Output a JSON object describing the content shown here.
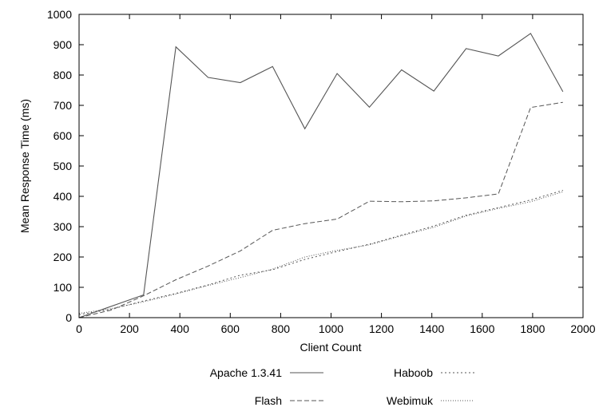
{
  "chart_data": {
    "type": "line",
    "xlabel": "Client Count",
    "ylabel": "Mean Response Time (ms)",
    "xlim": [
      0,
      2000
    ],
    "ylim": [
      0,
      1000
    ],
    "xticks": [
      0,
      200,
      400,
      600,
      800,
      1000,
      1200,
      1400,
      1600,
      1800,
      2000
    ],
    "yticks": [
      0,
      100,
      200,
      300,
      400,
      500,
      600,
      700,
      800,
      900,
      1000
    ],
    "grid": false,
    "legend_position": "bottom, two columns",
    "series": [
      {
        "name": "Apache 1.3.41",
        "style": "solid",
        "color": "#555555",
        "points": [
          [
            0,
            0
          ],
          [
            256,
            75
          ],
          [
            384,
            893
          ],
          [
            512,
            792
          ],
          [
            640,
            775
          ],
          [
            768,
            828
          ],
          [
            896,
            623
          ],
          [
            1024,
            805
          ],
          [
            1152,
            694
          ],
          [
            1280,
            817
          ],
          [
            1408,
            747
          ],
          [
            1536,
            887
          ],
          [
            1664,
            863
          ],
          [
            1792,
            937
          ],
          [
            1920,
            745
          ]
        ]
      },
      {
        "name": "Flash",
        "style": "dashed",
        "color": "#555555",
        "points": [
          [
            0,
            0
          ],
          [
            128,
            25
          ],
          [
            256,
            72
          ],
          [
            384,
            125
          ],
          [
            512,
            170
          ],
          [
            640,
            220
          ],
          [
            768,
            288
          ],
          [
            896,
            310
          ],
          [
            1024,
            325
          ],
          [
            1152,
            384
          ],
          [
            1280,
            382
          ],
          [
            1408,
            385
          ],
          [
            1536,
            395
          ],
          [
            1664,
            408
          ],
          [
            1792,
            693
          ],
          [
            1920,
            710
          ]
        ]
      },
      {
        "name": "Haboob",
        "style": "dotted",
        "color": "#555555",
        "points": [
          [
            0,
            10
          ],
          [
            128,
            28
          ],
          [
            256,
            55
          ],
          [
            384,
            80
          ],
          [
            512,
            108
          ],
          [
            640,
            140
          ],
          [
            768,
            158
          ],
          [
            896,
            192
          ],
          [
            1024,
            218
          ],
          [
            1152,
            242
          ],
          [
            1280,
            272
          ],
          [
            1408,
            302
          ],
          [
            1536,
            338
          ],
          [
            1664,
            363
          ],
          [
            1792,
            388
          ],
          [
            1920,
            420
          ]
        ]
      },
      {
        "name": "Webimuk",
        "style": "fine-dotted",
        "color": "#555555",
        "points": [
          [
            0,
            14
          ],
          [
            128,
            30
          ],
          [
            256,
            52
          ],
          [
            384,
            78
          ],
          [
            512,
            106
          ],
          [
            640,
            132
          ],
          [
            768,
            160
          ],
          [
            896,
            200
          ],
          [
            1024,
            222
          ],
          [
            1152,
            240
          ],
          [
            1280,
            270
          ],
          [
            1408,
            298
          ],
          [
            1536,
            335
          ],
          [
            1664,
            360
          ],
          [
            1792,
            382
          ],
          [
            1920,
            415
          ]
        ]
      }
    ]
  }
}
